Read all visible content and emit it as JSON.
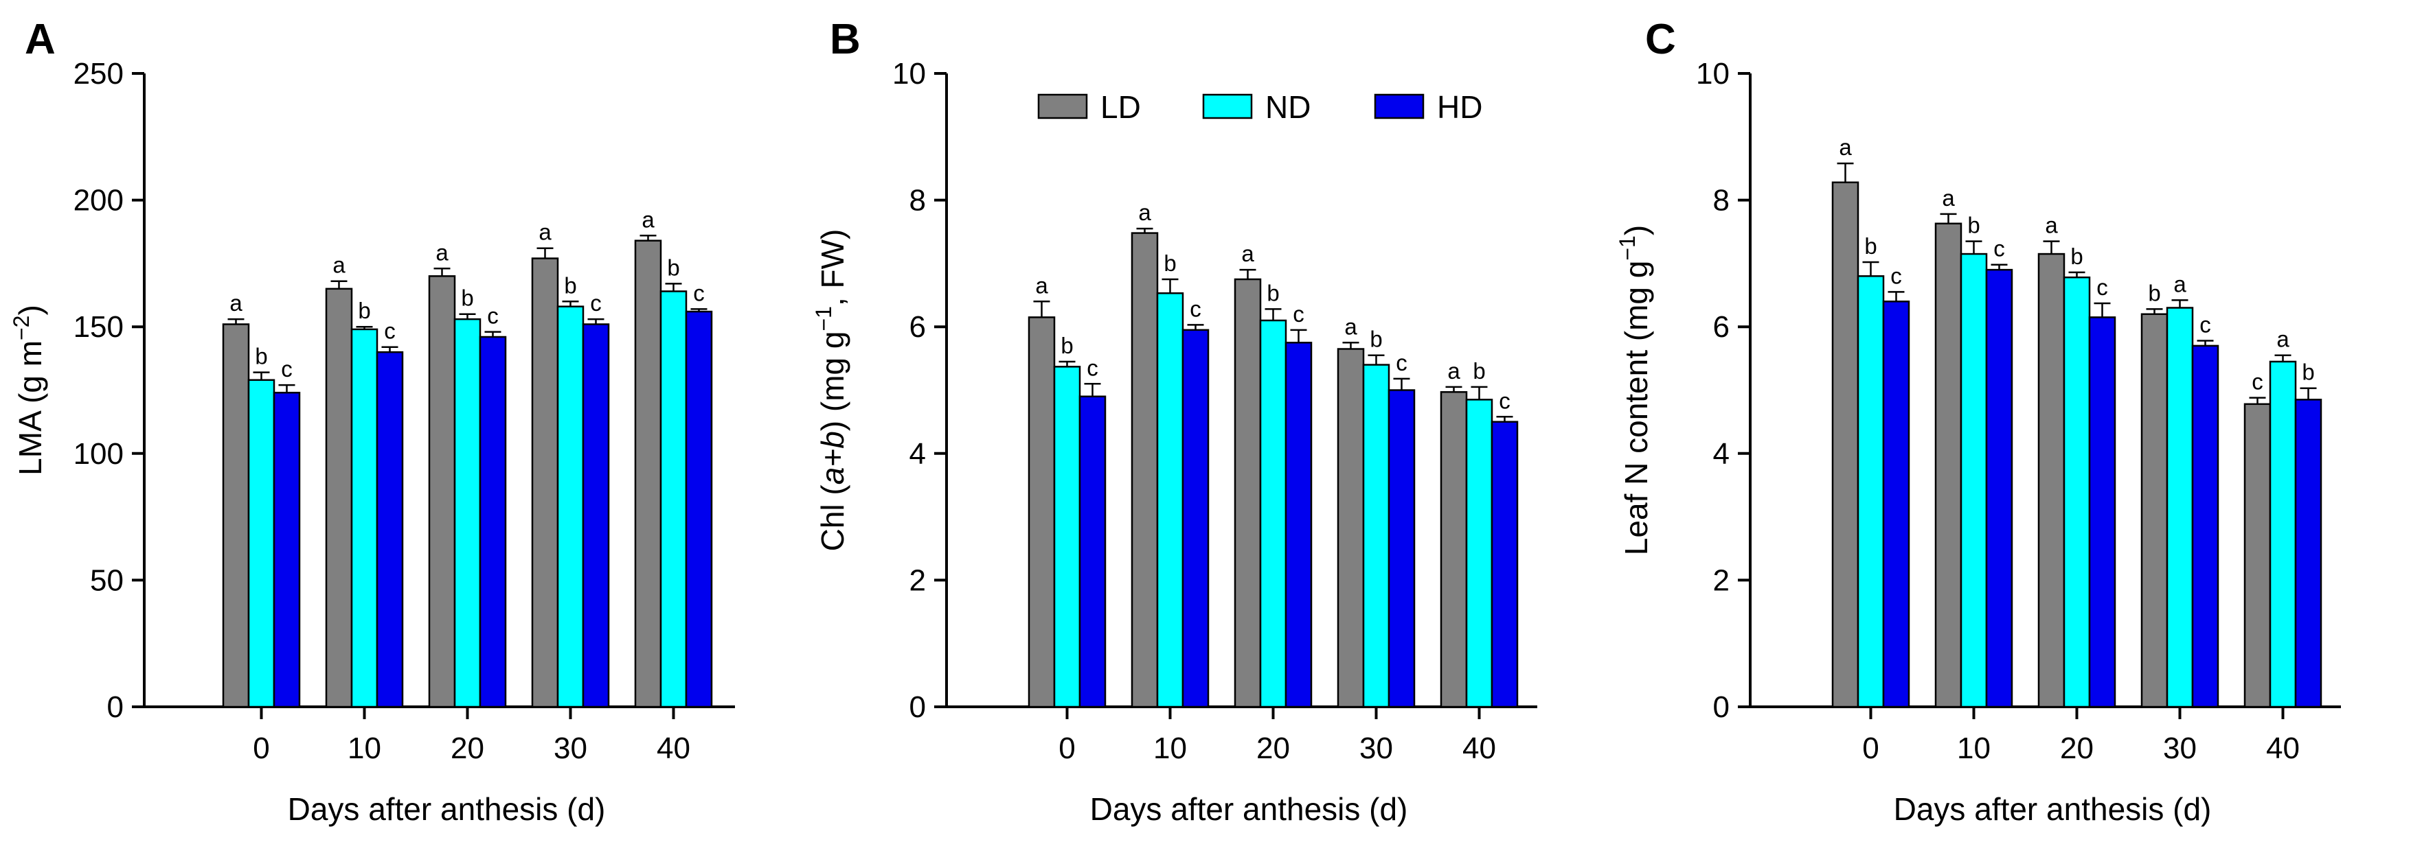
{
  "figure": {
    "legend": [
      {
        "label": "LD",
        "color": "#808080"
      },
      {
        "label": "ND",
        "color": "#00FFFF"
      },
      {
        "label": "HD",
        "color": "#0000EE"
      }
    ]
  },
  "chart_data": [
    {
      "type": "bar",
      "panel": "A",
      "title": "",
      "xlabel": "Days after anthesis (d)",
      "ylabel": "LMA (g m−2)",
      "ylabel_parts": {
        "main": "LMA (g m",
        "sup": "−2",
        "tail": ")"
      },
      "ylim": [
        0,
        250
      ],
      "yticks": [
        0,
        50,
        100,
        150,
        200,
        250
      ],
      "categories": [
        "0",
        "10",
        "20",
        "30",
        "40"
      ],
      "series": [
        {
          "name": "LD",
          "values": [
            151,
            165,
            170,
            177,
            184
          ],
          "errors": [
            2,
            3,
            3,
            4,
            2
          ],
          "letters": [
            "a",
            "a",
            "a",
            "a",
            "a"
          ]
        },
        {
          "name": "ND",
          "values": [
            129,
            149,
            153,
            158,
            164
          ],
          "errors": [
            3,
            1,
            2,
            2,
            3
          ],
          "letters": [
            "b",
            "b",
            "b",
            "b",
            "b"
          ]
        },
        {
          "name": "HD",
          "values": [
            124,
            140,
            146,
            151,
            156
          ],
          "errors": [
            3,
            2,
            2,
            2,
            1
          ],
          "letters": [
            "c",
            "c",
            "c",
            "c",
            "c"
          ]
        }
      ]
    },
    {
      "type": "bar",
      "panel": "B",
      "title": "",
      "xlabel": "Days after anthesis (d)",
      "ylabel": "Chl (a+b) (mg g−1, FW)",
      "ylabel_parts": {
        "pre": "Chl (",
        "italic": "a+b",
        "main": ") (mg g",
        "sup": "−1",
        "tail": ", FW)"
      },
      "ylim": [
        0,
        10
      ],
      "yticks": [
        0,
        2,
        4,
        6,
        8,
        10
      ],
      "categories": [
        "0",
        "10",
        "20",
        "30",
        "40"
      ],
      "series": [
        {
          "name": "LD",
          "values": [
            6.15,
            7.48,
            6.75,
            5.65,
            4.97
          ],
          "errors": [
            0.25,
            0.07,
            0.15,
            0.1,
            0.08
          ],
          "letters": [
            "a",
            "a",
            "a",
            "a",
            "a"
          ]
        },
        {
          "name": "ND",
          "values": [
            5.37,
            6.53,
            6.1,
            5.4,
            4.85
          ],
          "errors": [
            0.08,
            0.22,
            0.18,
            0.15,
            0.2
          ],
          "letters": [
            "b",
            "b",
            "b",
            "b",
            "b"
          ]
        },
        {
          "name": "HD",
          "values": [
            4.9,
            5.95,
            5.75,
            5.0,
            4.5
          ],
          "errors": [
            0.2,
            0.08,
            0.2,
            0.18,
            0.08
          ],
          "letters": [
            "c",
            "c",
            "c",
            "c",
            "c"
          ]
        }
      ]
    },
    {
      "type": "bar",
      "panel": "C",
      "title": "",
      "xlabel": "Days after anthesis (d)",
      "ylabel": "Leaf N content (mg g−1)",
      "ylabel_parts": {
        "main": "Leaf N content (mg g",
        "sup": "−1",
        "tail": ")"
      },
      "ylim": [
        0,
        10
      ],
      "yticks": [
        0,
        2,
        4,
        6,
        8,
        10
      ],
      "categories": [
        "0",
        "10",
        "20",
        "30",
        "40"
      ],
      "series": [
        {
          "name": "LD",
          "values": [
            8.28,
            7.63,
            7.15,
            6.2,
            4.78
          ],
          "errors": [
            0.3,
            0.15,
            0.2,
            0.08,
            0.1
          ],
          "letters": [
            "a",
            "a",
            "a",
            "b",
            "c"
          ]
        },
        {
          "name": "ND",
          "values": [
            6.8,
            7.15,
            6.78,
            6.3,
            5.45
          ],
          "errors": [
            0.22,
            0.2,
            0.08,
            0.12,
            0.1
          ],
          "letters": [
            "b",
            "b",
            "b",
            "a",
            "a"
          ]
        },
        {
          "name": "HD",
          "values": [
            6.4,
            6.9,
            6.15,
            5.7,
            4.85
          ],
          "errors": [
            0.15,
            0.08,
            0.22,
            0.08,
            0.18
          ],
          "letters": [
            "c",
            "c",
            "c",
            "c",
            "b"
          ]
        }
      ]
    }
  ]
}
